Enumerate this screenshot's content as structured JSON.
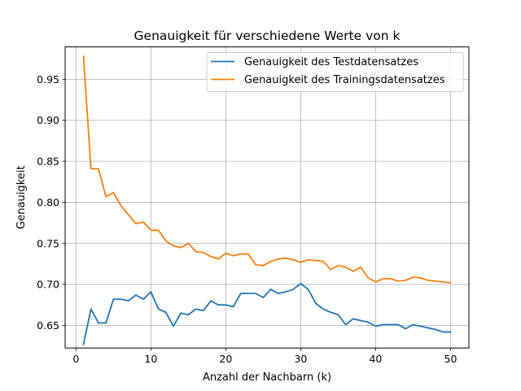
{
  "chart_data": {
    "type": "line",
    "title": "Genauigkeit für verschiedene Werte von k",
    "xlabel": "Anzahl der Nachbarn (k)",
    "ylabel": "Genauigkeit",
    "xlim": [
      -1.45,
      52.45
    ],
    "ylim": [
      0.6225,
      0.9895
    ],
    "xticks": [
      0,
      10,
      20,
      30,
      40,
      50
    ],
    "xtick_labels": [
      "0",
      "10",
      "20",
      "30",
      "40",
      "50"
    ],
    "yticks": [
      0.65,
      0.7,
      0.75,
      0.8,
      0.85,
      0.9,
      0.95
    ],
    "ytick_labels": [
      "0.65",
      "0.70",
      "0.75",
      "0.80",
      "0.85",
      "0.90",
      "0.95"
    ],
    "grid": true,
    "legend_position": "top-right",
    "x": [
      1,
      2,
      3,
      4,
      5,
      6,
      7,
      8,
      9,
      10,
      11,
      12,
      13,
      14,
      15,
      16,
      17,
      18,
      19,
      20,
      21,
      22,
      23,
      24,
      25,
      26,
      27,
      28,
      29,
      30,
      31,
      32,
      33,
      34,
      35,
      36,
      37,
      38,
      39,
      40,
      41,
      42,
      43,
      44,
      45,
      46,
      47,
      48,
      49,
      50
    ],
    "series": [
      {
        "name": "Genauigkeit des Testdatensatzes",
        "color": "#1f77b4",
        "values": [
          0.627,
          0.67,
          0.653,
          0.653,
          0.682,
          0.682,
          0.68,
          0.687,
          0.682,
          0.691,
          0.67,
          0.666,
          0.649,
          0.665,
          0.663,
          0.67,
          0.668,
          0.68,
          0.675,
          0.675,
          0.673,
          0.689,
          0.689,
          0.689,
          0.684,
          0.694,
          0.689,
          0.691,
          0.694,
          0.701,
          0.694,
          0.677,
          0.67,
          0.666,
          0.663,
          0.651,
          0.658,
          0.656,
          0.654,
          0.649,
          0.651,
          0.651,
          0.651,
          0.646,
          0.651,
          0.649,
          0.647,
          0.645,
          0.642,
          0.642
        ]
      },
      {
        "name": "Genauigkeit des Trainingsdatensatzes",
        "color": "#ff7f0e",
        "values": [
          0.978,
          0.841,
          0.841,
          0.807,
          0.812,
          0.796,
          0.785,
          0.774,
          0.776,
          0.766,
          0.766,
          0.753,
          0.747,
          0.745,
          0.75,
          0.74,
          0.739,
          0.734,
          0.731,
          0.738,
          0.735,
          0.737,
          0.737,
          0.724,
          0.723,
          0.728,
          0.731,
          0.732,
          0.73,
          0.727,
          0.73,
          0.729,
          0.728,
          0.718,
          0.723,
          0.721,
          0.716,
          0.721,
          0.708,
          0.703,
          0.707,
          0.707,
          0.704,
          0.705,
          0.709,
          0.708,
          0.705,
          0.704,
          0.703,
          0.702
        ]
      }
    ]
  }
}
